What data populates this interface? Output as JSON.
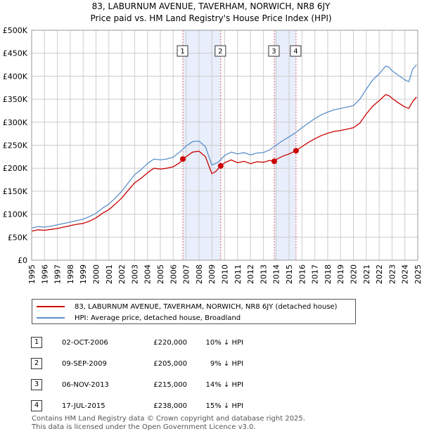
{
  "title": {
    "line1": "83, LABURNUM AVENUE, TAVERHAM, NORWICH, NR8 6JY",
    "line2": "Price paid vs. HM Land Registry's House Price Index (HPI)"
  },
  "chart_data": {
    "type": "line",
    "ylim": [
      0,
      500000
    ],
    "xlim": [
      1995,
      2025
    ],
    "y_ticks": [
      0,
      50000,
      100000,
      150000,
      200000,
      250000,
      300000,
      350000,
      400000,
      450000,
      500000
    ],
    "y_tick_labels": [
      "£0",
      "£50K",
      "£100K",
      "£150K",
      "£200K",
      "£250K",
      "£300K",
      "£350K",
      "£400K",
      "£450K",
      "£500K"
    ],
    "x_tick_labels": [
      "1995",
      "1996",
      "1997",
      "1998",
      "1999",
      "2000",
      "2001",
      "2002",
      "2003",
      "2004",
      "2005",
      "2006",
      "2007",
      "2008",
      "2009",
      "2010",
      "2011",
      "2012",
      "2013",
      "2014",
      "2015",
      "2016",
      "2017",
      "2018",
      "2019",
      "2020",
      "2021",
      "2022",
      "2023",
      "2024",
      "2025"
    ],
    "grid": true,
    "series": [
      {
        "name": "83, LABURNUM AVENUE, TAVERHAM, NORWICH, NR8 6JY (detached house)",
        "color": "#cc0000",
        "points": [
          [
            1995.0,
            63000
          ],
          [
            1995.5,
            66000
          ],
          [
            1996.0,
            65000
          ],
          [
            1996.5,
            67000
          ],
          [
            1997.0,
            69000
          ],
          [
            1997.5,
            72000
          ],
          [
            1998.0,
            75000
          ],
          [
            1998.5,
            78000
          ],
          [
            1999.0,
            80000
          ],
          [
            1999.5,
            85000
          ],
          [
            2000.0,
            92000
          ],
          [
            2000.5,
            102000
          ],
          [
            2001.0,
            110000
          ],
          [
            2001.5,
            122000
          ],
          [
            2002.0,
            135000
          ],
          [
            2002.5,
            152000
          ],
          [
            2003.0,
            168000
          ],
          [
            2003.5,
            178000
          ],
          [
            2004.0,
            190000
          ],
          [
            2004.5,
            200000
          ],
          [
            2005.0,
            198000
          ],
          [
            2005.5,
            200000
          ],
          [
            2006.0,
            203000
          ],
          [
            2006.5,
            212000
          ],
          [
            2006.75,
            220000
          ],
          [
            2007.0,
            225000
          ],
          [
            2007.5,
            235000
          ],
          [
            2008.0,
            237000
          ],
          [
            2008.5,
            225000
          ],
          [
            2009.0,
            188000
          ],
          [
            2009.3,
            193000
          ],
          [
            2009.69,
            205000
          ],
          [
            2010.0,
            212000
          ],
          [
            2010.5,
            218000
          ],
          [
            2011.0,
            212000
          ],
          [
            2011.5,
            215000
          ],
          [
            2012.0,
            210000
          ],
          [
            2012.5,
            214000
          ],
          [
            2013.0,
            213000
          ],
          [
            2013.5,
            217000
          ],
          [
            2013.85,
            215000
          ],
          [
            2014.0,
            219000
          ],
          [
            2014.5,
            226000
          ],
          [
            2015.0,
            231000
          ],
          [
            2015.54,
            238000
          ],
          [
            2016.0,
            247000
          ],
          [
            2016.5,
            256000
          ],
          [
            2017.0,
            264000
          ],
          [
            2017.5,
            271000
          ],
          [
            2018.0,
            276000
          ],
          [
            2018.5,
            280000
          ],
          [
            2019.0,
            282000
          ],
          [
            2019.5,
            285000
          ],
          [
            2020.0,
            288000
          ],
          [
            2020.5,
            298000
          ],
          [
            2021.0,
            318000
          ],
          [
            2021.5,
            335000
          ],
          [
            2022.0,
            347000
          ],
          [
            2022.5,
            360000
          ],
          [
            2022.75,
            358000
          ],
          [
            2023.0,
            352000
          ],
          [
            2023.5,
            342000
          ],
          [
            2024.0,
            333000
          ],
          [
            2024.3,
            330000
          ],
          [
            2024.6,
            345000
          ],
          [
            2024.9,
            355000
          ]
        ]
      },
      {
        "name": "HPI: Average price, detached house, Broadland",
        "color": "#5b8fc9",
        "points": [
          [
            1995.0,
            70000
          ],
          [
            1995.5,
            73000
          ],
          [
            1996.0,
            72000
          ],
          [
            1996.5,
            74000
          ],
          [
            1997.0,
            77000
          ],
          [
            1997.5,
            80000
          ],
          [
            1998.0,
            83000
          ],
          [
            1998.5,
            86000
          ],
          [
            1999.0,
            89000
          ],
          [
            1999.5,
            95000
          ],
          [
            2000.0,
            102000
          ],
          [
            2000.5,
            113000
          ],
          [
            2001.0,
            122000
          ],
          [
            2001.5,
            135000
          ],
          [
            2002.0,
            150000
          ],
          [
            2002.5,
            168000
          ],
          [
            2003.0,
            186000
          ],
          [
            2003.5,
            197000
          ],
          [
            2004.0,
            210000
          ],
          [
            2004.5,
            220000
          ],
          [
            2005.0,
            218000
          ],
          [
            2005.5,
            220000
          ],
          [
            2006.0,
            224000
          ],
          [
            2006.5,
            235000
          ],
          [
            2007.0,
            248000
          ],
          [
            2007.5,
            258000
          ],
          [
            2008.0,
            259000
          ],
          [
            2008.5,
            247000
          ],
          [
            2009.0,
            207000
          ],
          [
            2009.5,
            213000
          ],
          [
            2010.0,
            228000
          ],
          [
            2010.5,
            235000
          ],
          [
            2011.0,
            231000
          ],
          [
            2011.5,
            234000
          ],
          [
            2012.0,
            229000
          ],
          [
            2012.5,
            233000
          ],
          [
            2013.0,
            234000
          ],
          [
            2013.5,
            240000
          ],
          [
            2014.0,
            250000
          ],
          [
            2014.5,
            260000
          ],
          [
            2015.0,
            268000
          ],
          [
            2015.5,
            277000
          ],
          [
            2016.0,
            288000
          ],
          [
            2016.5,
            298000
          ],
          [
            2017.0,
            308000
          ],
          [
            2017.5,
            316000
          ],
          [
            2018.0,
            322000
          ],
          [
            2018.5,
            327000
          ],
          [
            2019.0,
            330000
          ],
          [
            2019.5,
            333000
          ],
          [
            2020.0,
            336000
          ],
          [
            2020.5,
            350000
          ],
          [
            2021.0,
            372000
          ],
          [
            2021.5,
            392000
          ],
          [
            2022.0,
            405000
          ],
          [
            2022.5,
            422000
          ],
          [
            2022.75,
            420000
          ],
          [
            2023.0,
            412000
          ],
          [
            2023.5,
            402000
          ],
          [
            2024.0,
            392000
          ],
          [
            2024.3,
            388000
          ],
          [
            2024.6,
            415000
          ],
          [
            2024.9,
            425000
          ]
        ]
      }
    ],
    "markers": [
      {
        "label": "1",
        "x": 2006.75,
        "y": 220000
      },
      {
        "label": "2",
        "x": 2009.69,
        "y": 205000
      },
      {
        "label": "3",
        "x": 2013.85,
        "y": 215000
      },
      {
        "label": "4",
        "x": 2015.54,
        "y": 238000
      }
    ],
    "shaded_periods": [
      [
        2006.75,
        2009.69
      ],
      [
        2013.85,
        2015.54
      ]
    ],
    "colors": {
      "shade": "#e8eefb",
      "vline": "#e06666",
      "grid": "#cccccc"
    }
  },
  "legend": {
    "items": [
      {
        "label": "83, LABURNUM AVENUE, TAVERHAM, NORWICH, NR8 6JY (detached house)",
        "color": "#cc0000"
      },
      {
        "label": "HPI: Average price, detached house, Broadland",
        "color": "#5b8fc9"
      }
    ]
  },
  "sales": [
    {
      "num": "1",
      "date": "02-OCT-2006",
      "price": "£220,000",
      "pct": "10% ↓ HPI"
    },
    {
      "num": "2",
      "date": "09-SEP-2009",
      "price": "£205,000",
      "pct": "9% ↓ HPI"
    },
    {
      "num": "3",
      "date": "06-NOV-2013",
      "price": "£215,000",
      "pct": "14% ↓ HPI"
    },
    {
      "num": "4",
      "date": "17-JUL-2015",
      "price": "£238,000",
      "pct": "15% ↓ HPI"
    }
  ],
  "footer": {
    "line1": "Contains HM Land Registry data © Crown copyright and database right 2025.",
    "line2": "This data is licensed under the Open Government Licence v3.0."
  }
}
